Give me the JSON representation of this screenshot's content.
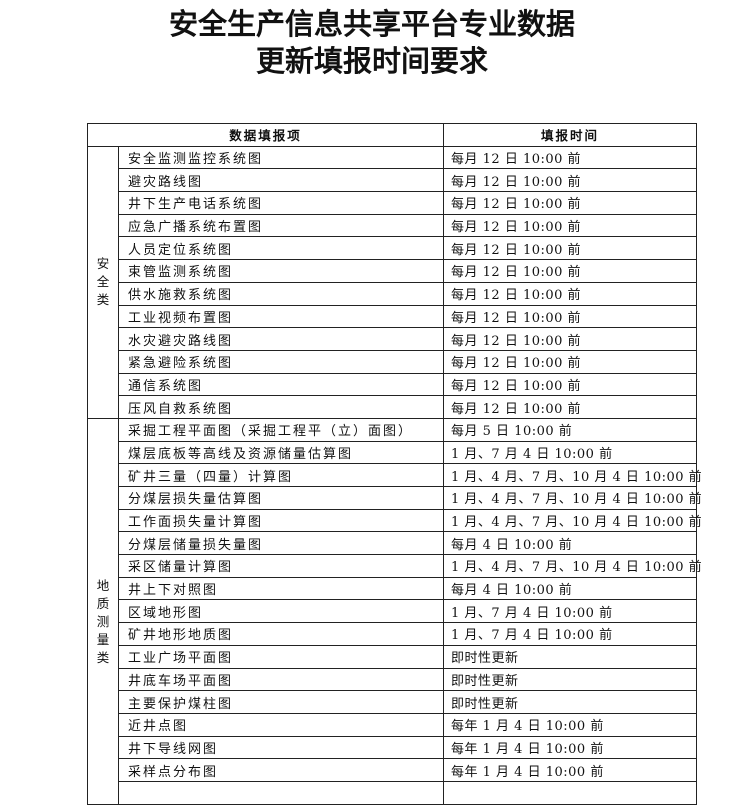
{
  "title": {
    "line1": "安全生产信息共享平台专业数据",
    "line2": "更新填报时间要求"
  },
  "table": {
    "headers": {
      "item": "数据填报项",
      "time": "填报时间"
    },
    "groups": [
      {
        "category": "安全类",
        "rows": [
          {
            "item": "安全监测监控系统图",
            "time": "每月 12 日 10:00 前"
          },
          {
            "item": "避灾路线图",
            "time": "每月 12 日 10:00 前"
          },
          {
            "item": "井下生产电话系统图",
            "time": "每月 12 日 10:00 前"
          },
          {
            "item": "应急广播系统布置图",
            "time": "每月 12 日 10:00 前"
          },
          {
            "item": "人员定位系统图",
            "time": "每月 12 日 10:00 前"
          },
          {
            "item": "束管监测系统图",
            "time": "每月 12 日 10:00 前"
          },
          {
            "item": "供水施救系统图",
            "time": "每月 12 日 10:00 前"
          },
          {
            "item": "工业视频布置图",
            "time": "每月 12 日 10:00 前"
          },
          {
            "item": "水灾避灾路线图",
            "time": "每月 12 日 10:00 前"
          },
          {
            "item": "紧急避险系统图",
            "time": "每月 12 日 10:00 前"
          },
          {
            "item": "通信系统图",
            "time": "每月 12 日 10:00 前"
          },
          {
            "item": "压风自救系统图",
            "time": "每月 12 日 10:00 前"
          }
        ]
      },
      {
        "category": "地质测量类",
        "rows": [
          {
            "item": "采掘工程平面图（采掘工程平（立）面图）",
            "time": "每月 5 日 10:00 前"
          },
          {
            "item": "煤层底板等高线及资源储量估算图",
            "time": "1 月、7 月 4 日 10:00 前"
          },
          {
            "item": "矿井三量（四量）计算图",
            "time": "1 月、4 月、7 月、10 月 4 日 10:00 前"
          },
          {
            "item": "分煤层损失量估算图",
            "time": "1 月、4 月、7 月、10 月 4 日 10:00 前"
          },
          {
            "item": "工作面损失量计算图",
            "time": "1 月、4 月、7 月、10 月 4 日 10:00 前"
          },
          {
            "item": "分煤层储量损失量图",
            "time": "每月 4 日 10:00 前"
          },
          {
            "item": "采区储量计算图",
            "time": "1 月、4 月、7 月、10 月 4 日 10:00 前"
          },
          {
            "item": "井上下对照图",
            "time": "每月 4 日 10:00 前"
          },
          {
            "item": "区域地形图",
            "time": "1 月、7 月 4 日 10:00 前"
          },
          {
            "item": "矿井地形地质图",
            "time": "1 月、7 月 4 日 10:00 前"
          },
          {
            "item": "工业广场平面图",
            "time": "即时性更新"
          },
          {
            "item": "井底车场平面图",
            "time": "即时性更新"
          },
          {
            "item": "主要保护煤柱图",
            "time": "即时性更新"
          },
          {
            "item": "近井点图",
            "time": "每年 1 月 4 日 10:00 前"
          },
          {
            "item": "井下导线网图",
            "time": "每年 1 月 4 日 10:00 前"
          },
          {
            "item": "采样点分布图",
            "time": "每年 1 月 4 日 10:00 前"
          }
        ]
      }
    ]
  }
}
